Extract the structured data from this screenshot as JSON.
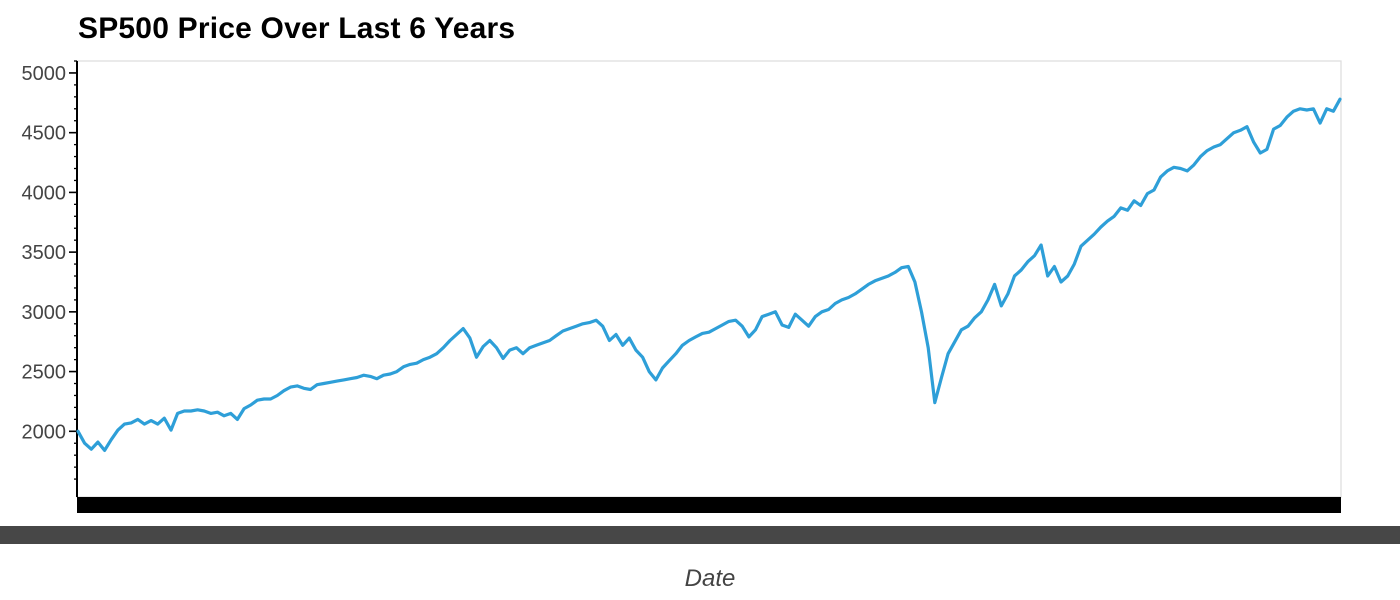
{
  "chart_data": {
    "type": "line",
    "title": "SP500 Price Over Last 6 Years",
    "xlabel": "Date",
    "ylabel": "",
    "ylim": [
      1450,
      5100
    ],
    "yticks": [
      "2000",
      "2500",
      "3000",
      "3500",
      "4000",
      "4500",
      "5000"
    ],
    "grid": false,
    "colors": {
      "line": "#2e9fd8",
      "axis": "#000000",
      "x_axis_band": "#000000",
      "bottom_band": "#474747"
    },
    "series": [
      {
        "values": [
          2000,
          1900,
          1850,
          1910,
          1840,
          1930,
          2010,
          2060,
          2070,
          2100,
          2060,
          2090,
          2060,
          2110,
          2010,
          2150,
          2170,
          2170,
          2180,
          2170,
          2150,
          2160,
          2130,
          2150,
          2100,
          2190,
          2220,
          2260,
          2270,
          2270,
          2300,
          2340,
          2370,
          2380,
          2360,
          2350,
          2390,
          2400,
          2410,
          2420,
          2430,
          2440,
          2450,
          2470,
          2460,
          2440,
          2470,
          2480,
          2500,
          2540,
          2560,
          2570,
          2600,
          2620,
          2650,
          2700,
          2760,
          2810,
          2860,
          2780,
          2620,
          2710,
          2760,
          2700,
          2610,
          2680,
          2700,
          2650,
          2700,
          2720,
          2740,
          2760,
          2800,
          2840,
          2860,
          2880,
          2900,
          2910,
          2930,
          2880,
          2760,
          2810,
          2720,
          2780,
          2680,
          2620,
          2500,
          2430,
          2530,
          2590,
          2650,
          2720,
          2760,
          2790,
          2820,
          2830,
          2860,
          2890,
          2920,
          2930,
          2880,
          2790,
          2850,
          2960,
          2980,
          3000,
          2890,
          2870,
          2980,
          2930,
          2880,
          2960,
          3000,
          3020,
          3070,
          3100,
          3120,
          3150,
          3190,
          3230,
          3260,
          3280,
          3300,
          3330,
          3370,
          3380,
          3250,
          3000,
          2700,
          2240,
          2450,
          2650,
          2750,
          2850,
          2880,
          2950,
          3000,
          3100,
          3230,
          3050,
          3150,
          3300,
          3350,
          3420,
          3470,
          3560,
          3300,
          3380,
          3250,
          3300,
          3400,
          3550,
          3600,
          3650,
          3710,
          3760,
          3800,
          3870,
          3850,
          3930,
          3890,
          3990,
          4020,
          4130,
          4180,
          4210,
          4200,
          4180,
          4230,
          4300,
          4350,
          4380,
          4400,
          4450,
          4500,
          4520,
          4550,
          4420,
          4330,
          4360,
          4530,
          4560,
          4630,
          4680,
          4700,
          4690,
          4700,
          4580,
          4700,
          4680,
          4780
        ]
      }
    ]
  }
}
